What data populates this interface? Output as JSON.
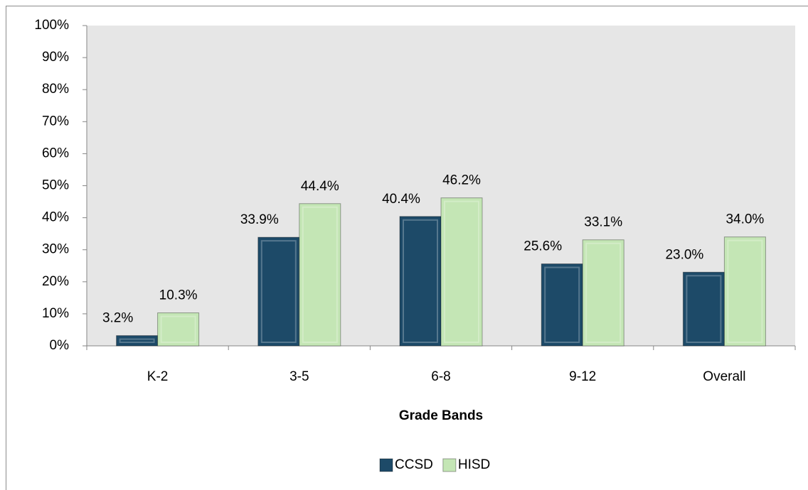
{
  "chart_data": {
    "type": "bar",
    "x_label": "Grade Bands",
    "categories": [
      "K-2",
      "3-5",
      "6-8",
      "9-12",
      "Overall"
    ],
    "series": [
      {
        "name": "CCSD",
        "color": "#1d4a68",
        "values": [
          3.2,
          33.9,
          40.4,
          25.6,
          23.0
        ],
        "value_labels": [
          "3.2%",
          "33.9%",
          "40.4%",
          "25.6%",
          "23.0%"
        ]
      },
      {
        "name": "HISD",
        "color": "#c4e6b5",
        "values": [
          10.3,
          44.4,
          46.2,
          33.1,
          34.0
        ],
        "value_labels": [
          "10.3%",
          "44.4%",
          "46.2%",
          "33.1%",
          "34.0%"
        ]
      }
    ],
    "ylim": [
      0,
      100
    ],
    "yticks": [
      {
        "value": 0,
        "label": "0%"
      },
      {
        "value": 10,
        "label": "10%"
      },
      {
        "value": 20,
        "label": "20%"
      },
      {
        "value": 30,
        "label": "30%"
      },
      {
        "value": 40,
        "label": "40%"
      },
      {
        "value": 50,
        "label": "50%"
      },
      {
        "value": 60,
        "label": "60%"
      },
      {
        "value": 70,
        "label": "70%"
      },
      {
        "value": 80,
        "label": "80%"
      },
      {
        "value": 90,
        "label": "90%"
      },
      {
        "value": 100,
        "label": "100%"
      }
    ],
    "grid": false,
    "legend": "bottom"
  }
}
